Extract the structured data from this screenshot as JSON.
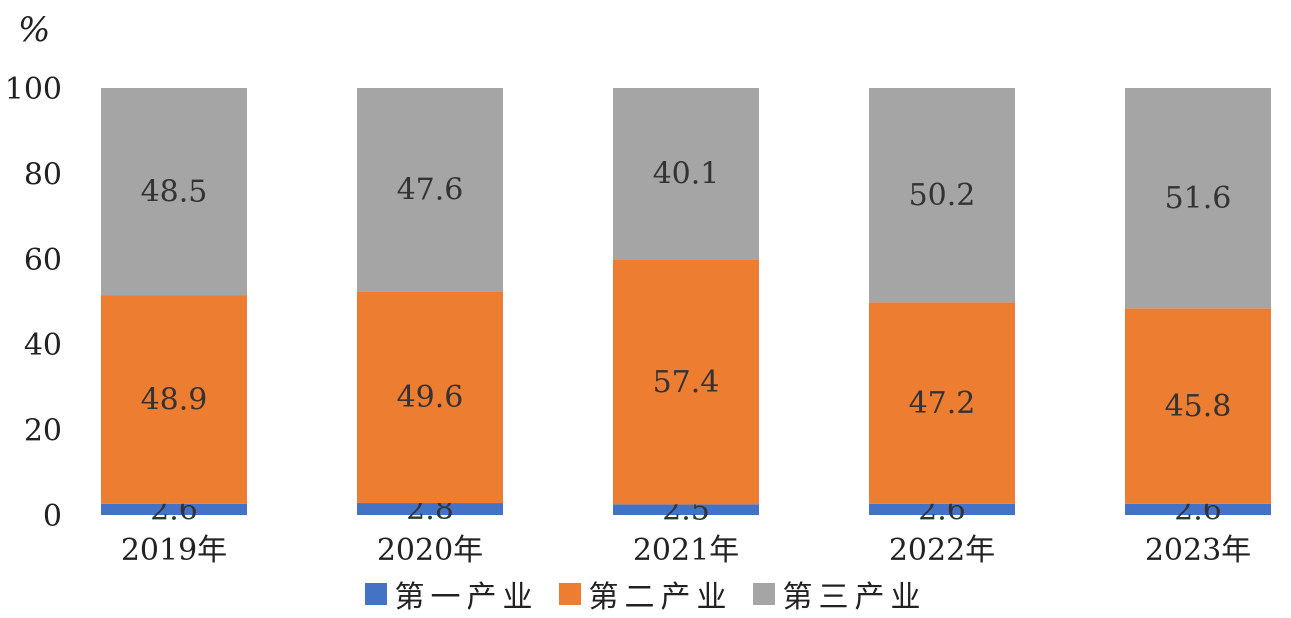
{
  "chart_data": {
    "type": "bar",
    "stacked": true,
    "unit_label": "%",
    "title": "",
    "xlabel": "",
    "ylabel": "%",
    "ylim": [
      0,
      100
    ],
    "yticks": [
      0,
      20,
      40,
      60,
      80,
      100
    ],
    "grid": false,
    "legend_position": "bottom",
    "categories": [
      "2019年",
      "2020年",
      "2021年",
      "2022年",
      "2023年"
    ],
    "series": [
      {
        "name": "第一产业",
        "color": "#4472c4",
        "values": [
          2.6,
          2.8,
          2.5,
          2.6,
          2.6
        ]
      },
      {
        "name": "第二产业",
        "color": "#ed7d31",
        "values": [
          48.9,
          49.6,
          57.4,
          47.2,
          45.8
        ]
      },
      {
        "name": "第三产业",
        "color": "#a5a5a5",
        "values": [
          48.5,
          47.6,
          40.1,
          50.2,
          51.6
        ]
      }
    ]
  }
}
